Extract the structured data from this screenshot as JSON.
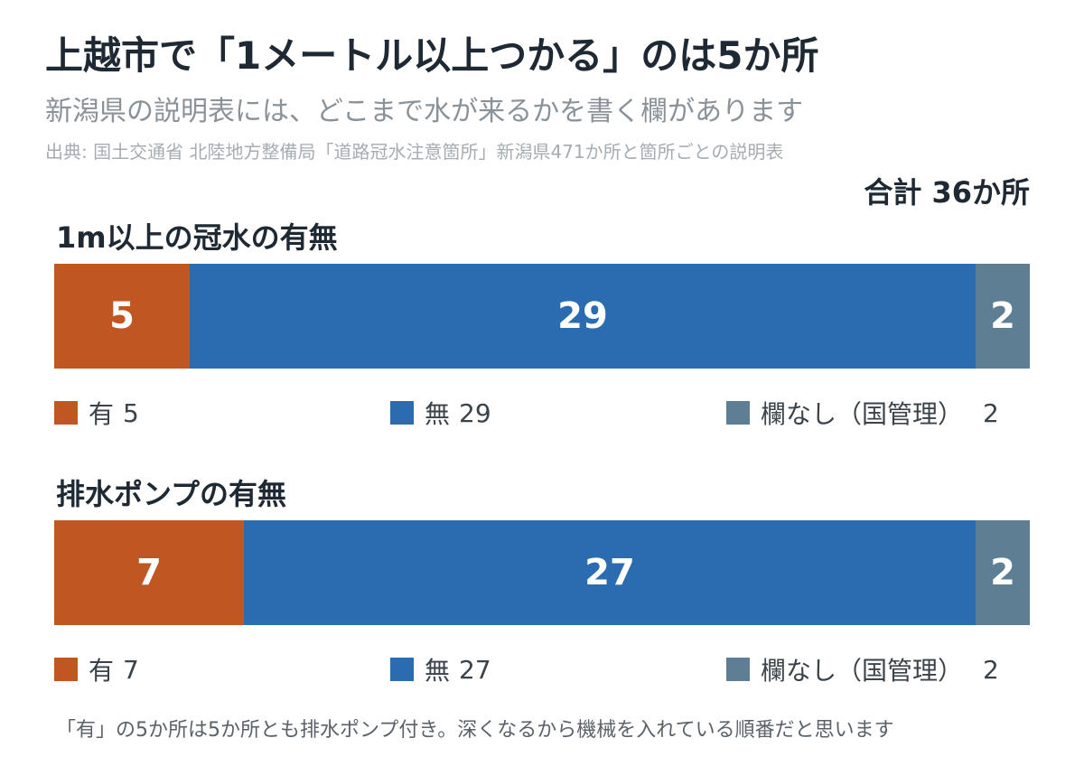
{
  "title": "上越市で「1メートル以上つかる」のは5か所",
  "subtitle": "新潟県の説明表には、どこまで水が来るかを書く欄があります",
  "source": "出典: 国土交通省 北陸地方整備局「道路冠水注意箇所」新潟県471か所と箇所ごとの説明表",
  "total_label": "合計 36か所",
  "footnote": "「有」の5か所は5か所とも排水ポンプ付き。深くなるから機械を入れている順番だと思います",
  "colors": {
    "yes": "#c05621",
    "no": "#2b6cb0",
    "none": "#5e7e94"
  },
  "chart_data": [
    {
      "type": "bar",
      "title": "1m以上の冠水の有無",
      "stacked": true,
      "orientation": "horizontal",
      "total": 36,
      "categories": [
        "有",
        "無",
        "欄なし（国管理）"
      ],
      "values": [
        5,
        29,
        2
      ]
    },
    {
      "type": "bar",
      "title": "排水ポンプの有無",
      "stacked": true,
      "orientation": "horizontal",
      "total": 36,
      "categories": [
        "有",
        "無",
        "欄なし（国管理）"
      ],
      "values": [
        7,
        27,
        2
      ]
    }
  ]
}
